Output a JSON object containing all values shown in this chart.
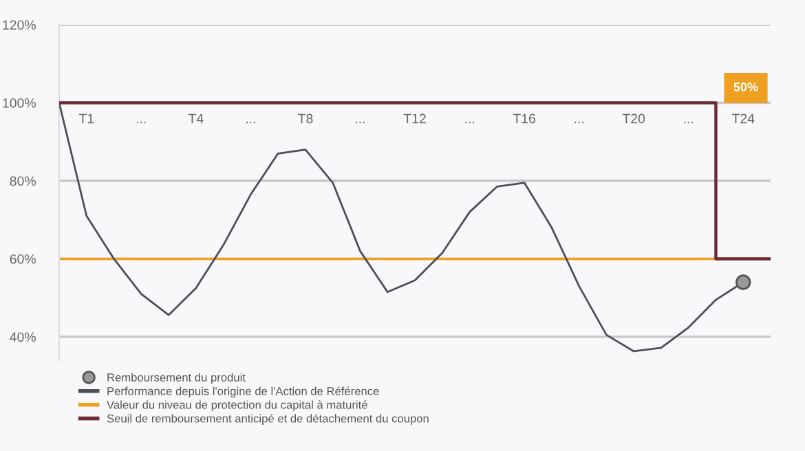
{
  "chart_data": {
    "type": "line",
    "categories": [
      null,
      "T1",
      null,
      "...",
      null,
      "T4",
      null,
      "...",
      null,
      "T8",
      null,
      "...",
      null,
      "T12",
      null,
      "...",
      null,
      "T16",
      null,
      "...",
      null,
      "T20",
      null,
      "...",
      null,
      "T24",
      null
    ],
    "series": [
      {
        "name": "Remboursement du produit",
        "type": "scatter",
        "color": "#999999",
        "values": [
          null,
          null,
          null,
          null,
          null,
          null,
          null,
          null,
          null,
          null,
          null,
          null,
          null,
          null,
          null,
          null,
          null,
          null,
          null,
          null,
          null,
          null,
          null,
          null,
          null,
          54,
          null
        ]
      },
      {
        "name": "Performance depuis l'origine de l'Action de Référence",
        "color": "#4a4f5a",
        "values": [
          100,
          71,
          60,
          51,
          45.6,
          52.5,
          63.5,
          76.5,
          87,
          88,
          79.5,
          62,
          51.5,
          54.5,
          61.5,
          72,
          78.5,
          79.5,
          68,
          53,
          40.5,
          36.3,
          37.2,
          42.4,
          49.5,
          54,
          null
        ]
      },
      {
        "name": "Seuil de remboursement anticipé et de détachement du coupon",
        "type": "step",
        "color": "#6b2a35",
        "values": [
          100,
          100,
          100,
          100,
          100,
          100,
          100,
          100,
          100,
          100,
          100,
          100,
          100,
          100,
          100,
          100,
          100,
          100,
          100,
          100,
          100,
          100,
          100,
          100,
          60,
          60,
          60
        ]
      }
    ],
    "ref_lines": [
      {
        "axis": "y",
        "value": 60,
        "label": "Valeur du niveau de protection du capital à maturité",
        "color": "#f0a020"
      }
    ],
    "annotations": [
      "50%"
    ],
    "ylim": [
      34,
      120
    ],
    "yticks": [
      {
        "value": 40,
        "label": "40%"
      },
      {
        "value": 60,
        "label": "60%"
      },
      {
        "value": 80,
        "label": "80%"
      },
      {
        "value": 100,
        "label": "100%"
      },
      {
        "value": 120,
        "label": "120%"
      }
    ],
    "grid": "y",
    "legend": "bottom"
  }
}
